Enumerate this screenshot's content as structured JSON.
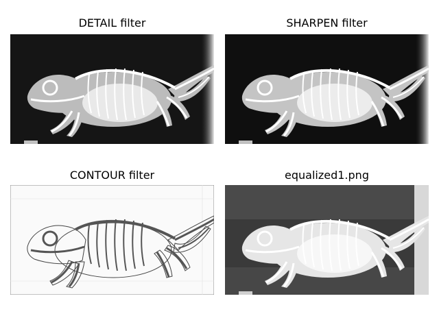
{
  "figure": {
    "panels": [
      {
        "title": "DETAIL filter",
        "style": "dark"
      },
      {
        "title": "SHARPEN filter",
        "style": "dark"
      },
      {
        "title": "CONTOUR filter",
        "style": "contour"
      },
      {
        "title": "equalized1.png",
        "style": "equalized"
      }
    ],
    "subject_icon": "chameleon-xray"
  }
}
